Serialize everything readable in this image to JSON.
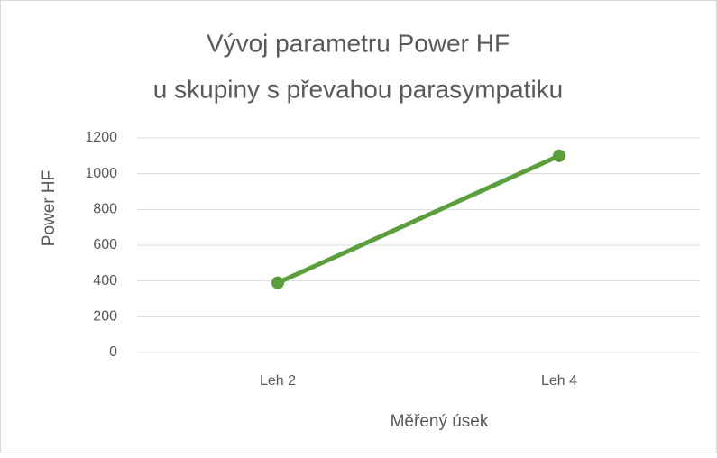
{
  "chart_data": {
    "type": "line",
    "title": [
      "Vývoj parametru Power HF",
      "u skupiny s převahou parasympatiku"
    ],
    "x_label": "Měřený úsek",
    "y_label": "Power HF",
    "categories": [
      "Leh 2",
      "Leh 4"
    ],
    "series": [
      {
        "name": "Power HF",
        "color": "#5b9e3c",
        "values": [
          390,
          1100
        ]
      }
    ],
    "ylim": [
      0,
      1200
    ],
    "yticks": [
      0,
      200,
      400,
      600,
      800,
      1000,
      1200
    ],
    "grid": true,
    "legend": false
  }
}
